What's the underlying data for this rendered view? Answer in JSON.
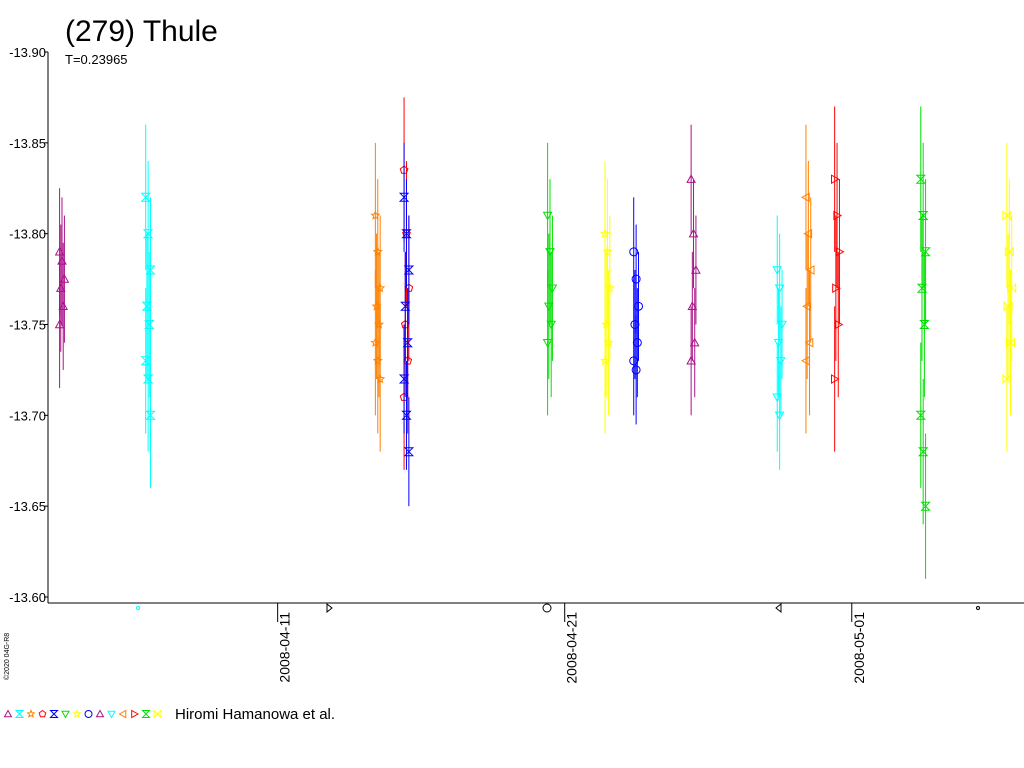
{
  "chart_data": {
    "type": "scatter",
    "title": "(279) Thule",
    "subtitle": "T=0.23965",
    "copyright": "©2020 04G-R8",
    "legend_label": "Hiromi Hamanowa et al.",
    "ylim": [
      -13.9,
      -13.6
    ],
    "yticks": [
      {
        "value": -13.9,
        "label": "-13.90"
      },
      -13.85,
      {
        "value": -13.8,
        "label": "-13.80"
      },
      -13.75,
      {
        "value": -13.7,
        "label": "-13.70"
      },
      -13.65,
      {
        "value": -13.6,
        "label": "-13.60"
      }
    ],
    "xlim": [
      "2008-04-03",
      "2008-05-07"
    ],
    "xticks": [
      "2008-04-11",
      "2008-04-21",
      "2008-05-01"
    ],
    "series": [
      {
        "color": "#aa1188",
        "marker": "triangle",
        "date": "2008-04-03",
        "values": [
          -13.79,
          -13.785,
          -13.775,
          -13.77,
          -13.76,
          -13.75
        ],
        "errors": [
          0.035,
          0.035,
          0.035,
          0.035,
          0.035,
          0.035
        ]
      },
      {
        "color": "#00ffff",
        "marker": "hourglass",
        "date": "2008-04-06",
        "values": [
          -13.82,
          -13.8,
          -13.78,
          -13.76,
          -13.75,
          -13.73,
          -13.72,
          -13.7
        ],
        "errors": [
          0.04,
          0.04,
          0.04,
          0.04,
          0.04,
          0.04,
          0.04,
          0.04
        ]
      },
      {
        "color": "#ff8000",
        "marker": "star",
        "date": "2008-04-14",
        "values": [
          -13.81,
          -13.79,
          -13.77,
          -13.76,
          -13.75,
          -13.74,
          -13.73,
          -13.72
        ],
        "errors": [
          0.04,
          0.04,
          0.04,
          0.04,
          0.04,
          0.04,
          0.04,
          0.04
        ]
      },
      {
        "color": "#ff0000",
        "marker": "pentagon",
        "date": "2008-04-15",
        "values": [
          -13.835,
          -13.8,
          -13.77,
          -13.75,
          -13.73,
          -13.71
        ],
        "errors": [
          0.04,
          0.04,
          0.04,
          0.04,
          0.04,
          0.04
        ]
      },
      {
        "color": "#0000ff",
        "marker": "hourglass",
        "date": "2008-04-15",
        "values": [
          -13.82,
          -13.8,
          -13.78,
          -13.76,
          -13.74,
          -13.72,
          -13.7,
          -13.68
        ],
        "errors": [
          0.03,
          0.03,
          0.03,
          0.03,
          0.03,
          0.03,
          0.03,
          0.03
        ]
      },
      {
        "color": "#00e000",
        "marker": "triangle-down",
        "date": "2008-04-20",
        "values": [
          -13.81,
          -13.79,
          -13.77,
          -13.76,
          -13.75,
          -13.74
        ],
        "errors": [
          0.04,
          0.04,
          0.04,
          0.04,
          0.04,
          0.04
        ]
      },
      {
        "color": "#ffff00",
        "marker": "star",
        "date": "2008-04-22",
        "values": [
          -13.8,
          -13.79,
          -13.77,
          -13.75,
          -13.74,
          -13.73
        ],
        "errors": [
          0.04,
          0.04,
          0.04,
          0.04,
          0.04,
          0.04
        ]
      },
      {
        "color": "#0000ff",
        "marker": "circle",
        "date": "2008-04-23",
        "values": [
          -13.79,
          -13.775,
          -13.76,
          -13.75,
          -13.74,
          -13.73,
          -13.725
        ],
        "errors": [
          0.03,
          0.03,
          0.03,
          0.03,
          0.03,
          0.03,
          0.03
        ]
      },
      {
        "color": "#aa1188",
        "marker": "triangle",
        "date": "2008-04-25",
        "values": [
          -13.83,
          -13.8,
          -13.78,
          -13.76,
          -13.74,
          -13.73
        ],
        "errors": [
          0.03,
          0.03,
          0.03,
          0.03,
          0.03,
          0.03
        ]
      },
      {
        "color": "#00ffff",
        "marker": "triangle-down",
        "date": "2008-04-28",
        "values": [
          -13.78,
          -13.77,
          -13.75,
          -13.74,
          -13.73,
          -13.71,
          -13.7
        ],
        "errors": [
          0.03,
          0.03,
          0.03,
          0.03,
          0.03,
          0.03,
          0.03
        ]
      },
      {
        "color": "#ff8000",
        "marker": "triangle-left",
        "date": "2008-04-29",
        "values": [
          -13.82,
          -13.8,
          -13.78,
          -13.76,
          -13.74,
          -13.73
        ],
        "errors": [
          0.04,
          0.04,
          0.04,
          0.04,
          0.04,
          0.04
        ]
      },
      {
        "color": "#ff0000",
        "marker": "triangle-right",
        "date": "2008-04-30",
        "values": [
          -13.83,
          -13.81,
          -13.79,
          -13.77,
          -13.75,
          -13.72
        ],
        "errors": [
          0.04,
          0.04,
          0.04,
          0.04,
          0.04,
          0.04
        ]
      },
      {
        "color": "#00e000",
        "marker": "hourglass",
        "date": "2008-05-03",
        "values": [
          -13.83,
          -13.81,
          -13.79,
          -13.77,
          -13.75,
          -13.7,
          -13.68,
          -13.65
        ],
        "errors": [
          0.04,
          0.04,
          0.04,
          0.04,
          0.04,
          0.04,
          0.04,
          0.04
        ]
      },
      {
        "color": "#ffff00",
        "marker": "bowtie",
        "date": "2008-05-06",
        "values": [
          -13.81,
          -13.79,
          -13.77,
          -13.76,
          -13.74,
          -13.72
        ],
        "errors": [
          0.04,
          0.04,
          0.04,
          0.04,
          0.04,
          0.04
        ]
      }
    ]
  }
}
